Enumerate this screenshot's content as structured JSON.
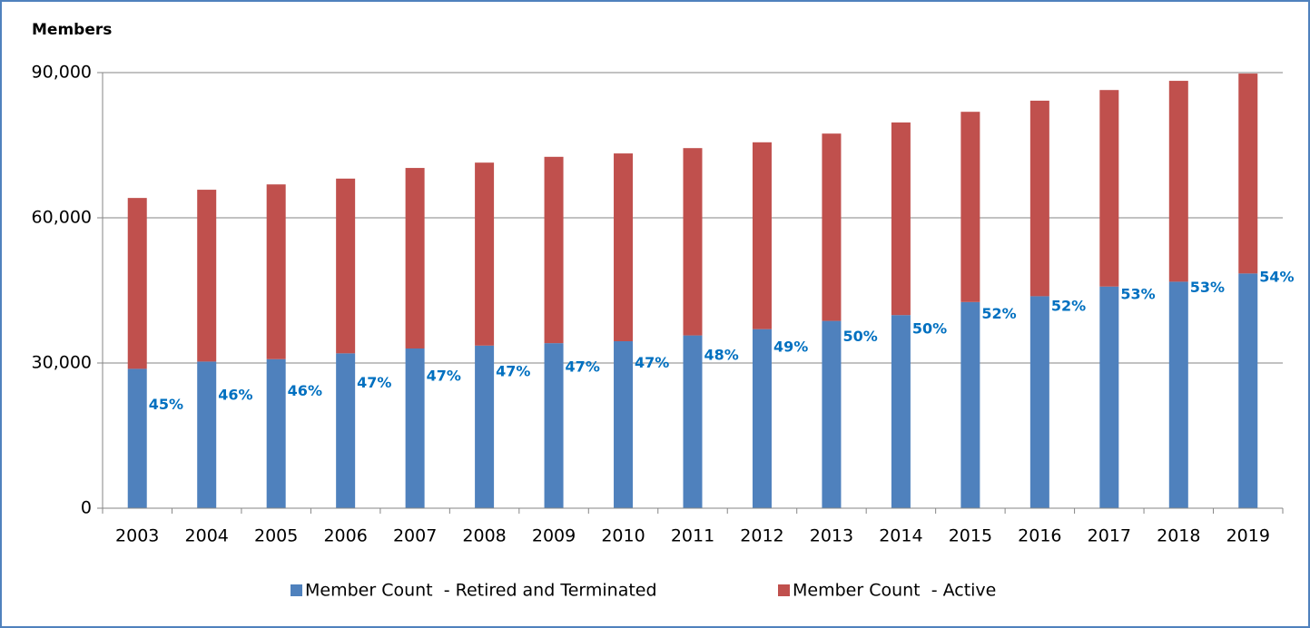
{
  "chart_data": {
    "type": "stacked_bar",
    "title": "Members",
    "categories": [
      "2003",
      "2004",
      "2005",
      "2006",
      "2007",
      "2008",
      "2009",
      "2010",
      "2011",
      "2012",
      "2013",
      "2014",
      "2015",
      "2016",
      "2017",
      "2018",
      "2019"
    ],
    "series": [
      {
        "name": "Member Count  - Retired and Terminated",
        "color": "#4f81bd",
        "values": [
          28800,
          30300,
          30800,
          32000,
          33000,
          33600,
          34100,
          34500,
          35700,
          37000,
          38700,
          39900,
          42600,
          43800,
          45800,
          46800,
          48500
        ]
      },
      {
        "name": "Member Count  - Active",
        "color": "#c0504d",
        "values": [
          35300,
          35500,
          36100,
          36100,
          37300,
          37800,
          38500,
          38800,
          38700,
          38600,
          38700,
          39800,
          39300,
          40400,
          40600,
          41500,
          41300
        ]
      }
    ],
    "share_labels": [
      "45%",
      "46%",
      "46%",
      "47%",
      "47%",
      "47%",
      "47%",
      "47%",
      "48%",
      "49%",
      "50%",
      "50%",
      "52%",
      "52%",
      "53%",
      "53%",
      "54%"
    ],
    "share_label_color": "#0070c0",
    "ylim": [
      0,
      90000
    ],
    "yticks": [
      0,
      {
        "value": 30000,
        "label": "30,000"
      },
      {
        "value": 60000,
        "label": "60,000"
      },
      {
        "value": 90000,
        "label": "90,000"
      }
    ],
    "grid": true,
    "legend": "bottom"
  }
}
